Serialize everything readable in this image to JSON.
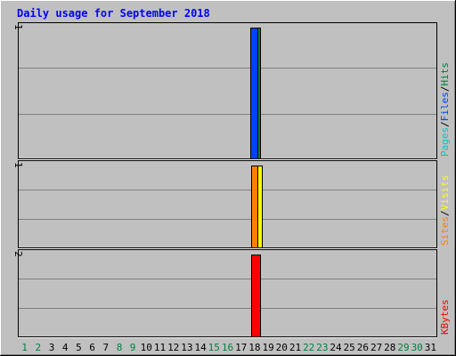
{
  "chart_data": {
    "type": "bar",
    "title": "Daily usage for September 2018",
    "categories": [
      "1",
      "2",
      "3",
      "4",
      "5",
      "6",
      "7",
      "8",
      "9",
      "10",
      "11",
      "12",
      "13",
      "14",
      "15",
      "16",
      "17",
      "18",
      "19",
      "20",
      "21",
      "22",
      "23",
      "24",
      "25",
      "26",
      "27",
      "28",
      "29",
      "30",
      "31"
    ],
    "weekend_days": [
      "1",
      "2",
      "8",
      "9",
      "15",
      "16",
      "22",
      "23",
      "29",
      "30"
    ],
    "panels": [
      {
        "id": "hits",
        "ymax": 1,
        "ytick": "1",
        "legend": [
          {
            "label": "Pages",
            "color": "#00c8c8"
          },
          {
            "label": "/",
            "color": "#000000"
          },
          {
            "label": "Files",
            "color": "#0040ff"
          },
          {
            "label": "/",
            "color": "#000000"
          },
          {
            "label": "Hits",
            "color": "#008040"
          }
        ],
        "series": [
          {
            "name": "Hits",
            "color": "#008040",
            "values": [
              0,
              0,
              0,
              0,
              0,
              0,
              0,
              0,
              0,
              0,
              0,
              0,
              0,
              0,
              0,
              0,
              0,
              1,
              0,
              0,
              0,
              0,
              0,
              0,
              0,
              0,
              0,
              0,
              0,
              0,
              0
            ]
          },
          {
            "name": "Files",
            "color": "#0040ff",
            "values": [
              0,
              0,
              0,
              0,
              0,
              0,
              0,
              0,
              0,
              0,
              0,
              0,
              0,
              0,
              0,
              0,
              0,
              1,
              0,
              0,
              0,
              0,
              0,
              0,
              0,
              0,
              0,
              0,
              0,
              0,
              0
            ]
          },
          {
            "name": "Pages",
            "color": "#00c8c8",
            "values": [
              0,
              0,
              0,
              0,
              0,
              0,
              0,
              0,
              0,
              0,
              0,
              0,
              0,
              0,
              0,
              0,
              0,
              0,
              0,
              0,
              0,
              0,
              0,
              0,
              0,
              0,
              0,
              0,
              0,
              0,
              0
            ]
          }
        ]
      },
      {
        "id": "visits",
        "ymax": 1,
        "ytick": "1",
        "legend": [
          {
            "label": "Sites",
            "color": "#ff8000"
          },
          {
            "label": "/",
            "color": "#000000"
          },
          {
            "label": "Visits",
            "color": "#ffff00"
          }
        ],
        "series": [
          {
            "name": "Visits",
            "color": "#ffff00",
            "values": [
              0,
              0,
              0,
              0,
              0,
              0,
              0,
              0,
              0,
              0,
              0,
              0,
              0,
              0,
              0,
              0,
              0,
              1,
              0,
              0,
              0,
              0,
              0,
              0,
              0,
              0,
              0,
              0,
              0,
              0,
              0
            ]
          },
          {
            "name": "Sites",
            "color": "#ff8000",
            "values": [
              0,
              0,
              0,
              0,
              0,
              0,
              0,
              0,
              0,
              0,
              0,
              0,
              0,
              0,
              0,
              0,
              0,
              1,
              0,
              0,
              0,
              0,
              0,
              0,
              0,
              0,
              0,
              0,
              0,
              0,
              0
            ]
          }
        ]
      },
      {
        "id": "kbytes",
        "ymax": 2,
        "ytick": "2",
        "legend": [
          {
            "label": "KBytes",
            "color": "#ff0000"
          }
        ],
        "series": [
          {
            "name": "KBytes",
            "color": "#ff0000",
            "values": [
              0,
              0,
              0,
              0,
              0,
              0,
              0,
              0,
              0,
              0,
              0,
              0,
              0,
              0,
              0,
              0,
              0,
              2,
              0,
              0,
              0,
              0,
              0,
              0,
              0,
              0,
              0,
              0,
              0,
              0,
              0
            ]
          }
        ]
      }
    ],
    "colors": {
      "background": "#c0c0c0",
      "title": "#0000ff",
      "grid": "#808080",
      "weekend_label": "#008040",
      "weekday_label": "#000000"
    }
  }
}
